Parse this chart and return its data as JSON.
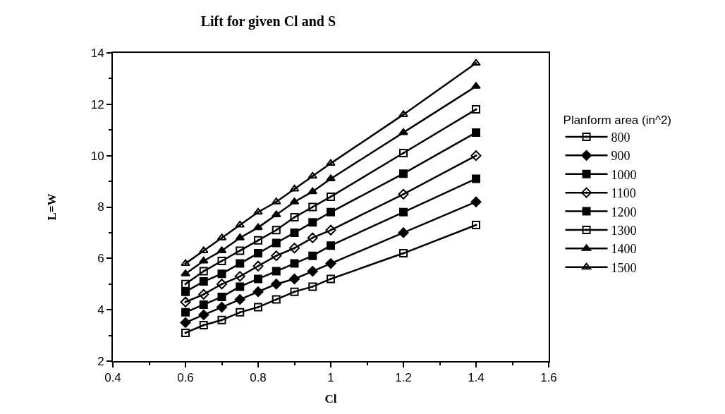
{
  "chart_data": {
    "type": "line",
    "title": "Lift for given Cl and S",
    "xlabel": "Cl",
    "ylabel": "L=W",
    "legend_title": "Planform area (in^2)",
    "x": [
      0.6,
      0.65,
      0.7,
      0.75,
      0.8,
      0.85,
      0.9,
      0.95,
      1.0,
      1.2,
      1.4
    ],
    "series": [
      {
        "name": "800",
        "color": "#000000",
        "marker": "square",
        "values": [
          3.1,
          3.4,
          3.6,
          3.9,
          4.1,
          4.4,
          4.7,
          4.9,
          5.2,
          6.2,
          7.3
        ]
      },
      {
        "name": "900",
        "color": "#000000",
        "marker": "diamond",
        "values": [
          3.5,
          3.8,
          4.1,
          4.4,
          4.7,
          5.0,
          5.2,
          5.5,
          5.8,
          7.0,
          8.2
        ]
      },
      {
        "name": "1000",
        "color": "#000000",
        "marker": "square",
        "values": [
          3.9,
          4.2,
          4.5,
          4.9,
          5.2,
          5.5,
          5.8,
          6.1,
          6.5,
          7.8,
          9.1
        ]
      },
      {
        "name": "1100",
        "color": "#000000",
        "marker": "diamond",
        "values": [
          4.3,
          4.6,
          5.0,
          5.3,
          5.7,
          6.1,
          6.4,
          6.8,
          7.1,
          8.5,
          10.0
        ]
      },
      {
        "name": "1200",
        "color": "#000000",
        "marker": "square",
        "values": [
          4.7,
          5.1,
          5.4,
          5.8,
          6.2,
          6.6,
          7.0,
          7.4,
          7.8,
          9.3,
          10.9
        ]
      },
      {
        "name": "1300",
        "color": "#000000",
        "marker": "square",
        "values": [
          5.0,
          5.5,
          5.9,
          6.3,
          6.7,
          7.1,
          7.6,
          8.0,
          8.4,
          10.1,
          11.8
        ]
      },
      {
        "name": "1400",
        "color": "#000000",
        "marker": "triangle",
        "values": [
          5.4,
          5.9,
          6.3,
          6.8,
          7.2,
          7.7,
          8.2,
          8.6,
          9.1,
          10.9,
          12.7
        ]
      },
      {
        "name": "1500",
        "color": "#000000",
        "marker": "triangle",
        "values": [
          5.8,
          6.3,
          6.8,
          7.3,
          7.8,
          8.2,
          8.7,
          9.2,
          9.7,
          11.6,
          13.6
        ]
      }
    ],
    "xlim": [
      0.4,
      1.6
    ],
    "xticks": [
      0.4,
      0.6,
      0.8,
      1.0,
      1.2,
      1.4,
      1.6
    ],
    "ylim": [
      2,
      14
    ],
    "yticks": [
      2,
      4,
      6,
      8,
      10,
      12,
      14
    ],
    "legend": "right",
    "line_style": "solid"
  }
}
